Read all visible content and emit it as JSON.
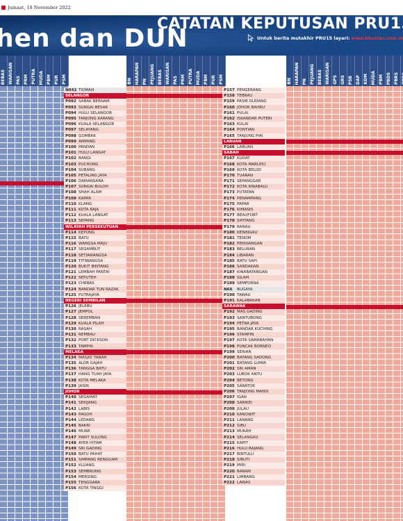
{
  "header": {
    "date": "Jumaat, 18 November 2022",
    "title": "CATATAN KEPUTUSAN PRU15",
    "subtitle": "Untuk berita mutakhir PRU15 layari:",
    "url": "www.bharian.com.my",
    "big_title": "hen dan DUN"
  },
  "party_groups": {
    "left": [
      "BEBAS",
      "WARISAN",
      "PAS",
      "PRM",
      "PUTRA",
      "MUDA",
      "PBM",
      "PUR",
      "PSM"
    ],
    "middle": [
      "BN",
      "HARAPAN",
      "PN",
      "PEJUANG",
      "BEBAS",
      "WARISAN",
      "PAS",
      "PRM",
      "PUTRA",
      "MUDA",
      "PBM",
      "PUR",
      "PSM"
    ],
    "right": [
      "BN",
      "HARAPAN",
      "PN",
      "PEJUANG",
      "BEBAS",
      "WARISAN",
      "GPS",
      "GRS",
      "PSB",
      "DAP",
      "KDM",
      "MUDA",
      "PBM",
      "PBDS",
      "PBRS",
      "PPRS",
      "PBK"
    ]
  },
  "colors": {
    "navy": "#163f7a",
    "red": "#c8102e",
    "blue_cell": "#7d93c4",
    "salmon_cell": "#f0a89a"
  },
  "col1": [
    {
      "code": "N042",
      "name": "TIOMAN",
      "type": "first"
    },
    {
      "state": "SELANGOR"
    },
    {
      "code": "P092",
      "name": "SABAK BERNAM"
    },
    {
      "code": "P093",
      "name": "SUNGAI BESAR"
    },
    {
      "code": "P094",
      "name": "HULU SELANGOR"
    },
    {
      "code": "P095",
      "name": "TANJONG KARANG"
    },
    {
      "code": "P096",
      "name": "KUALA SELANGOR"
    },
    {
      "code": "P097",
      "name": "SELAYANG"
    },
    {
      "code": "P098",
      "name": "GOMBAK"
    },
    {
      "code": "P099",
      "name": "AMPANG"
    },
    {
      "code": "P100",
      "name": "PANDAN"
    },
    {
      "code": "P101",
      "name": "HULU LANGAT"
    },
    {
      "code": "P102",
      "name": "BANGI"
    },
    {
      "code": "P103",
      "name": "PUCHONG"
    },
    {
      "code": "P104",
      "name": "SUBANG"
    },
    {
      "code": "P105",
      "name": "PETALING JAYA"
    },
    {
      "code": "P106",
      "name": "DAMANSARA"
    },
    {
      "code": "P107",
      "name": "SUNGAI BULOH"
    },
    {
      "code": "P108",
      "name": "SHAH ALAM"
    },
    {
      "code": "P109",
      "name": "KAPAR"
    },
    {
      "code": "P110",
      "name": "KLANG"
    },
    {
      "code": "P111",
      "name": "KOTA RAJA"
    },
    {
      "code": "P112",
      "name": "KUALA LANGAT"
    },
    {
      "code": "P113",
      "name": "SEPANG"
    },
    {
      "state": "WILAYAH PERSEKUTUAN"
    },
    {
      "code": "P114",
      "name": "KEPONG"
    },
    {
      "code": "P115",
      "name": "BATU"
    },
    {
      "code": "P116",
      "name": "WANGSA MAJU"
    },
    {
      "code": "P117",
      "name": "SEGAMBUT"
    },
    {
      "code": "P118",
      "name": "SETIAWANGSA"
    },
    {
      "code": "P119",
      "name": "TITIWANGSA"
    },
    {
      "code": "P120",
      "name": "BUKIT BINTANG"
    },
    {
      "code": "P121",
      "name": "LEMBAH PANTAI"
    },
    {
      "code": "P122",
      "name": "SEPUTEH"
    },
    {
      "code": "P123",
      "name": "CHERAS"
    },
    {
      "code": "P124",
      "name": "BANDAR TUN RAZAK"
    },
    {
      "code": "P125",
      "name": "PUTRAJAYA"
    },
    {
      "state": "NEGERI SEMBILAN"
    },
    {
      "code": "P126",
      "name": "JELEBU"
    },
    {
      "code": "P127",
      "name": "JEMPOL"
    },
    {
      "code": "P128",
      "name": "SEREMBAN"
    },
    {
      "code": "P129",
      "name": "KUALA PILAH"
    },
    {
      "code": "P130",
      "name": "RASAH"
    },
    {
      "code": "P131",
      "name": "REMBAU"
    },
    {
      "code": "P132",
      "name": "PORT DICKSON"
    },
    {
      "code": "P133",
      "name": "TAMPIN"
    },
    {
      "state": "MELAKA"
    },
    {
      "code": "P134",
      "name": "MASJID TANAH"
    },
    {
      "code": "P135",
      "name": "ALOR GAJAH"
    },
    {
      "code": "P136",
      "name": "TANGGA BATU"
    },
    {
      "code": "P137",
      "name": "HANG TUAH JAYA"
    },
    {
      "code": "P138",
      "name": "KOTA MELAKA"
    },
    {
      "code": "P139",
      "name": "JASIN"
    },
    {
      "state": "JOHOR"
    },
    {
      "code": "P140",
      "name": "SEGAMAT"
    },
    {
      "code": "P141",
      "name": "SEKIJANG"
    },
    {
      "code": "P142",
      "name": "LABIS"
    },
    {
      "code": "P143",
      "name": "PAGOH"
    },
    {
      "code": "P144",
      "name": "LEDANG"
    },
    {
      "code": "P145",
      "name": "BAKRI"
    },
    {
      "code": "P146",
      "name": "MUAR"
    },
    {
      "code": "P147",
      "name": "PARIT SULONG"
    },
    {
      "code": "P148",
      "name": "AYER HITAM"
    },
    {
      "code": "P149",
      "name": "SRI GADING"
    },
    {
      "code": "P150",
      "name": "BATU PAHAT"
    },
    {
      "code": "P151",
      "name": "SIMPANG RENGGAM"
    },
    {
      "code": "P152",
      "name": "KLUANG"
    },
    {
      "code": "P153",
      "name": "SEMBRONG"
    },
    {
      "code": "P154",
      "name": "MERSING"
    },
    {
      "code": "P155",
      "name": "TENGGARA"
    },
    {
      "code": "P156",
      "name": "KOTA TINGGI"
    }
  ],
  "col2": [
    {
      "code": "P157",
      "name": "PENGERANG"
    },
    {
      "code": "P158",
      "name": "TEBRAU"
    },
    {
      "code": "P159",
      "name": "PASIR GUDANG"
    },
    {
      "code": "P160",
      "name": "JOHOR BAHRU"
    },
    {
      "code": "P161",
      "name": "PULAI"
    },
    {
      "code": "P162",
      "name": "ISKANDAR PUTERI"
    },
    {
      "code": "P163",
      "name": "KULAI"
    },
    {
      "code": "P164",
      "name": "PONTIAN"
    },
    {
      "code": "P165",
      "name": "TANJUNG PIAI"
    },
    {
      "state": "LABUAN"
    },
    {
      "code": "P166",
      "name": "LABUAN"
    },
    {
      "state": "SABAH"
    },
    {
      "code": "P167",
      "name": "KUDAT"
    },
    {
      "code": "P168",
      "name": "KOTA MARUDU"
    },
    {
      "code": "P169",
      "name": "KOTA BELUD"
    },
    {
      "code": "P170",
      "name": "TUARAN"
    },
    {
      "code": "P171",
      "name": "SEPANGGAR"
    },
    {
      "code": "P172",
      "name": "KOTA KINABALU"
    },
    {
      "code": "P173",
      "name": "PUTATAN"
    },
    {
      "code": "P174",
      "name": "PENAMPANG"
    },
    {
      "code": "P175",
      "name": "PAPAR"
    },
    {
      "code": "P176",
      "name": "KIMANIS"
    },
    {
      "code": "P177",
      "name": "BEAUFORT"
    },
    {
      "code": "P178",
      "name": "SIPITANG"
    },
    {
      "code": "P179",
      "name": "RANAU"
    },
    {
      "code": "P180",
      "name": "KENINGAU"
    },
    {
      "code": "P181",
      "name": "TENOM"
    },
    {
      "code": "P182",
      "name": "PENSIANGAN"
    },
    {
      "code": "P183",
      "name": "BELURAN"
    },
    {
      "code": "P184",
      "name": "LIBARAN"
    },
    {
      "code": "P185",
      "name": "BATU SAPI"
    },
    {
      "code": "P186",
      "name": "SANDAKAN"
    },
    {
      "code": "P187",
      "name": "KINABATANGAN"
    },
    {
      "code": "P188",
      "name": "SILAM"
    },
    {
      "code": "P189",
      "name": "SEMPORNA"
    },
    {
      "code": "N66",
      "name": "BUGAYA",
      "type": "first"
    },
    {
      "code": "P190",
      "name": "TAWAU"
    },
    {
      "code": "P191",
      "name": "KALABAKAN"
    },
    {
      "state": "SARAWAK"
    },
    {
      "code": "P192",
      "name": "MAS GADING"
    },
    {
      "code": "P193",
      "name": "SANTUBONG"
    },
    {
      "code": "P194",
      "name": "PETRA JAYA"
    },
    {
      "code": "P195",
      "name": "BANDAR KUCHING"
    },
    {
      "code": "P196",
      "name": "STAMPIN"
    },
    {
      "code": "P197",
      "name": "KOTA SAMARAHAN"
    },
    {
      "code": "P198",
      "name": "PUNCAK BORNEO"
    },
    {
      "code": "P199",
      "name": "SERIAN"
    },
    {
      "code": "P200",
      "name": "BATANG SADONG"
    },
    {
      "code": "P201",
      "name": "BATANG LUPAR"
    },
    {
      "code": "P202",
      "name": "SRI AMAN"
    },
    {
      "code": "P203",
      "name": "LUBOK ANTU"
    },
    {
      "code": "P204",
      "name": "BETONG"
    },
    {
      "code": "P205",
      "name": "SARATOK"
    },
    {
      "code": "P206",
      "name": "TANJONG MANIS"
    },
    {
      "code": "P207",
      "name": "IGAN"
    },
    {
      "code": "P208",
      "name": "SARIKEI"
    },
    {
      "code": "P209",
      "name": "JULAU"
    },
    {
      "code": "P210",
      "name": "KANOWIT"
    },
    {
      "code": "P211",
      "name": "LANANG"
    },
    {
      "code": "P212",
      "name": "SIBU"
    },
    {
      "code": "P213",
      "name": "MUKAH"
    },
    {
      "code": "P214",
      "name": "SELANGAU"
    },
    {
      "code": "P215",
      "name": "KAPIT"
    },
    {
      "code": "P216",
      "name": "HULU RAJANG"
    },
    {
      "code": "P217",
      "name": "BINTULU"
    },
    {
      "code": "P218",
      "name": "SIBUTI"
    },
    {
      "code": "P219",
      "name": "MIRI"
    },
    {
      "code": "P220",
      "name": "BARAM"
    },
    {
      "code": "P221",
      "name": "LIMBANG"
    },
    {
      "code": "P222",
      "name": "LAWAS"
    }
  ]
}
